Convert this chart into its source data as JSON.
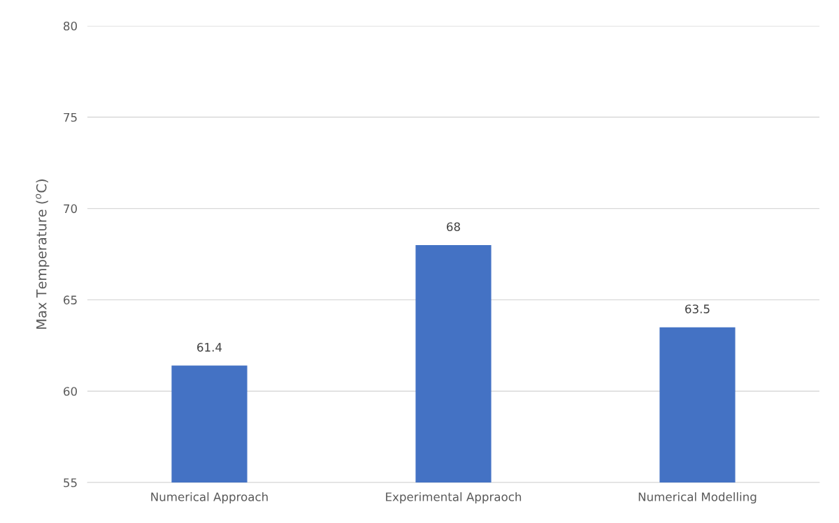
{
  "chart_data": {
    "type": "bar",
    "ylabel": "Max Temperature ($^{o}$C)",
    "categories": [
      "Numerical Approach",
      "Experimental Appraoch",
      "Numerical Modelling"
    ],
    "values": [
      61.4,
      68,
      63.5
    ],
    "color": "#4472c4",
    "ylim": [
      55,
      80
    ],
    "yticks": [
      55,
      60,
      65,
      70,
      75,
      80
    ],
    "grid": "y",
    "data_labels": true
  }
}
